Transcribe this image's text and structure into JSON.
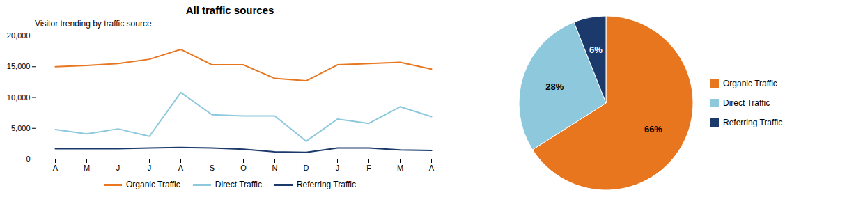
{
  "chart_data": [
    {
      "type": "line",
      "title": "All traffic sources",
      "subtitle": "Visitor trending by traffic source",
      "categories": [
        "A",
        "M",
        "J",
        "J",
        "A",
        "S",
        "O",
        "N",
        "D",
        "J",
        "F",
        "M",
        "A"
      ],
      "series": [
        {
          "name": "Organic Traffic",
          "color": "#E8761E",
          "values": [
            15000,
            15200,
            15500,
            16200,
            17800,
            15300,
            15300,
            13100,
            12700,
            15300,
            15500,
            15700,
            14600
          ]
        },
        {
          "name": "Direct Traffic",
          "color": "#8DC8DC",
          "values": [
            4800,
            4100,
            4900,
            3700,
            10800,
            7200,
            7000,
            7000,
            2900,
            6500,
            5800,
            8500,
            6900
          ]
        },
        {
          "name": "Referring Traffic",
          "color": "#1B3A6B",
          "values": [
            1700,
            1700,
            1700,
            1800,
            1900,
            1800,
            1600,
            1200,
            1100,
            1800,
            1800,
            1500,
            1400
          ]
        }
      ],
      "ylim": [
        0,
        20000
      ],
      "yticks": [
        0,
        {
          "value": 5000,
          "label": "5,000"
        },
        {
          "value": 10000,
          "label": "10,000"
        },
        {
          "value": 15000,
          "label": "15,000"
        },
        {
          "value": 20000,
          "label": "20,000"
        }
      ],
      "grid": false,
      "legend": "bottom"
    },
    {
      "type": "pie",
      "categories": [
        "Organic Traffic",
        "Direct Traffic",
        "Referring Traffic"
      ],
      "values": [
        66,
        28,
        6
      ],
      "value_labels": [
        "66%",
        "28%",
        "6%"
      ],
      "data_labels": true,
      "colors": [
        "#E8761E",
        "#8DC8DC",
        "#1B3A6B"
      ],
      "legend": "right"
    }
  ]
}
